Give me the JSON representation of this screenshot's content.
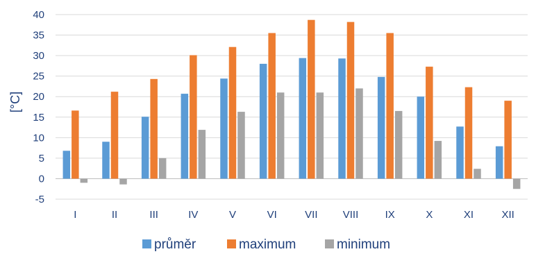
{
  "chart_data": {
    "type": "bar",
    "title": "",
    "xlabel": "",
    "ylabel": "[°C]",
    "ylim": [
      -5,
      40
    ],
    "yticks": [
      -5,
      0,
      5,
      10,
      15,
      20,
      25,
      30,
      35,
      40
    ],
    "grid": true,
    "legend_position": "bottom",
    "categories": [
      "I",
      "II",
      "III",
      "IV",
      "V",
      "VI",
      "VII",
      "VIII",
      "IX",
      "X",
      "XI",
      "XII"
    ],
    "series": [
      {
        "name": "průměr",
        "color": "#5B9BD5",
        "values": [
          6.8,
          9.0,
          15.1,
          20.7,
          24.4,
          28.0,
          29.4,
          29.3,
          24.8,
          20.0,
          12.7,
          7.9
        ]
      },
      {
        "name": "maximum",
        "color": "#ED7D31",
        "values": [
          16.6,
          21.2,
          24.3,
          30.1,
          32.1,
          35.5,
          38.7,
          38.2,
          35.5,
          27.3,
          22.3,
          19.0
        ]
      },
      {
        "name": "minimum",
        "color": "#A5A5A5",
        "values": [
          -1.0,
          -1.4,
          5.0,
          11.9,
          16.3,
          21.0,
          21.0,
          22.0,
          16.5,
          9.2,
          2.4,
          -2.5
        ]
      }
    ]
  }
}
